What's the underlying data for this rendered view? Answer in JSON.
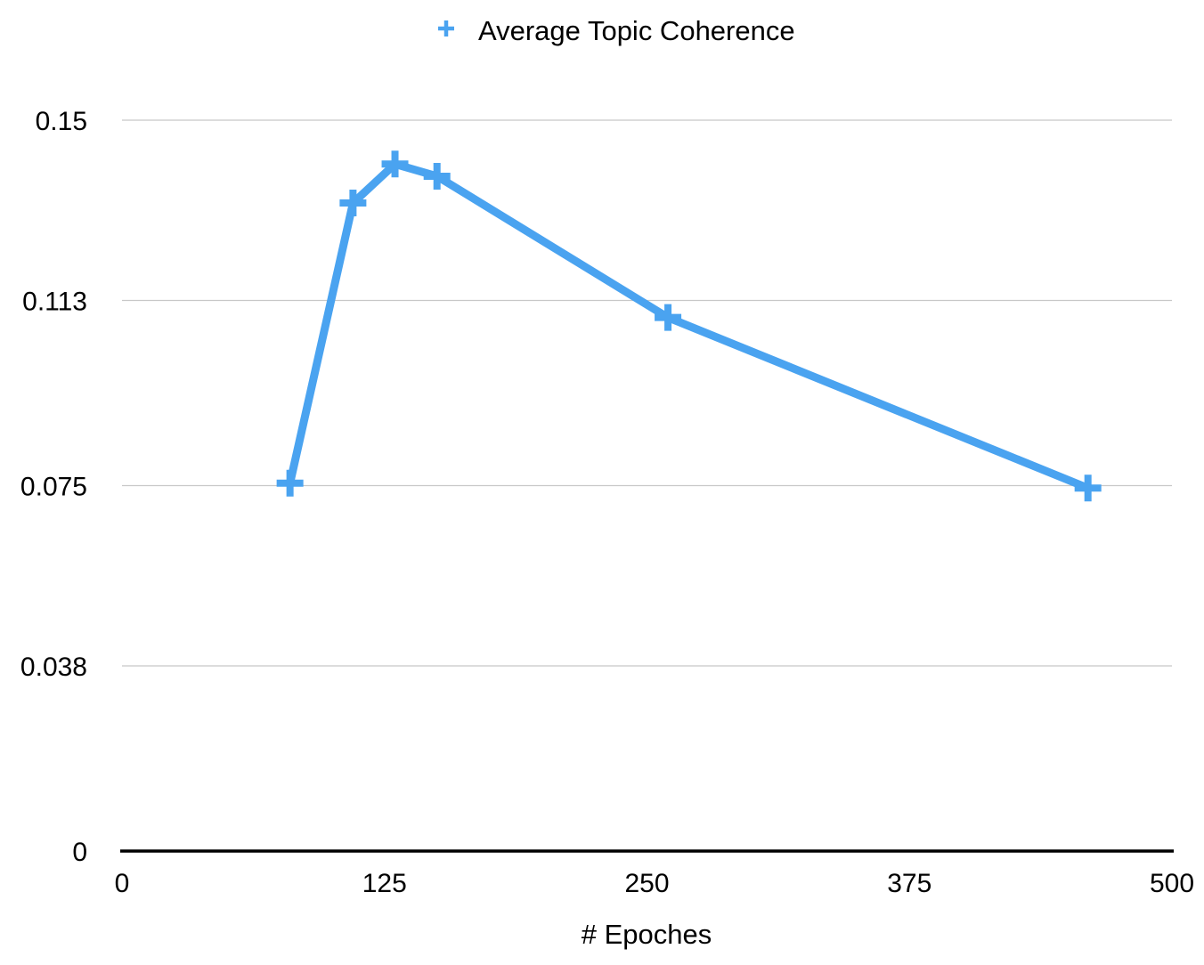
{
  "chart_data": {
    "type": "line",
    "title": "",
    "xlabel": "# Epoches",
    "ylabel": "",
    "xlim": [
      0,
      500
    ],
    "ylim": [
      0,
      0.15
    ],
    "x_ticks": [
      "0",
      "125",
      "250",
      "375",
      "500"
    ],
    "y_ticks": [
      "0",
      "0.038",
      "0.075",
      "0.113",
      "0.15"
    ],
    "grid": "horizontal",
    "legend_position": "top",
    "series": [
      {
        "name": "Average Topic Coherence",
        "color": "#4aa3f0",
        "marker": "plus",
        "x": [
          80,
          110,
          130,
          150,
          260,
          460
        ],
        "y": [
          0.0755,
          0.133,
          0.141,
          0.1385,
          0.1095,
          0.0745
        ]
      }
    ]
  }
}
